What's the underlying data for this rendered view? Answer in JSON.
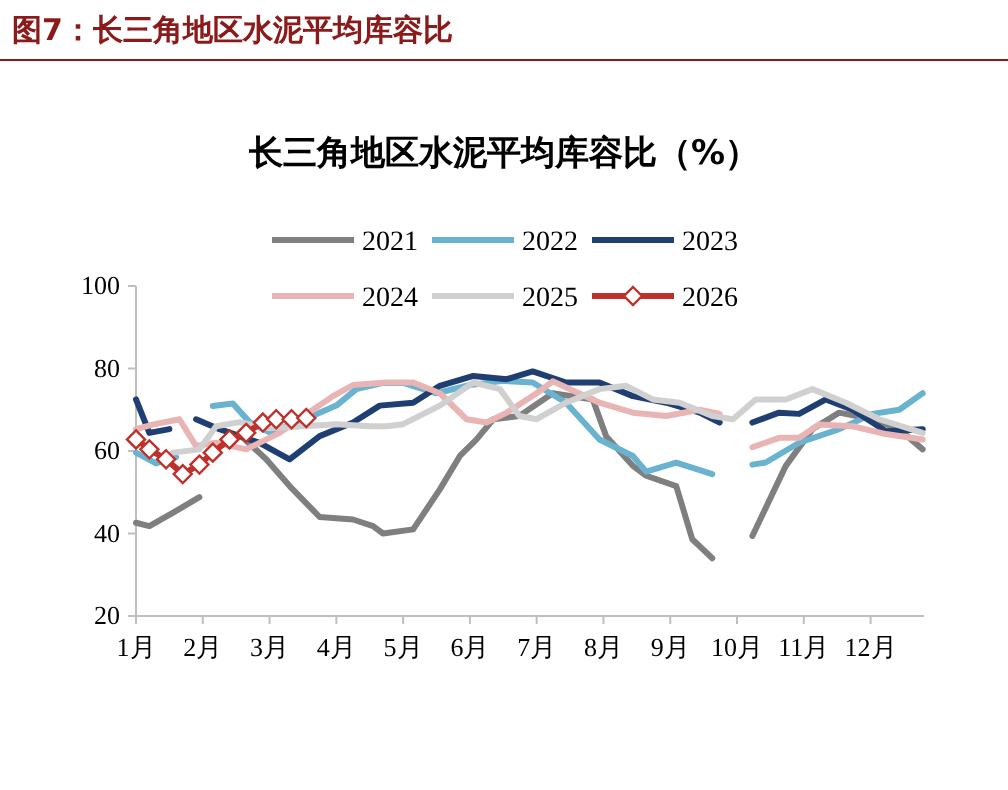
{
  "chart_data": {
    "type": "line",
    "title": "长三角地区水泥平均库容比（%）",
    "annotations": [
      "图7：长三角地区水泥平均库容比"
    ],
    "xlim": [
      1,
      12.8
    ],
    "xticks": [
      {
        "value": 1,
        "label": "1月"
      },
      {
        "value": 2,
        "label": "2月"
      },
      {
        "value": 3,
        "label": "3月"
      },
      {
        "value": 4,
        "label": "4月"
      },
      {
        "value": 5,
        "label": "5月"
      },
      {
        "value": 6,
        "label": "6月"
      },
      {
        "value": 7,
        "label": "7月"
      },
      {
        "value": 8,
        "label": "8月"
      },
      {
        "value": 9,
        "label": "9月"
      },
      {
        "value": 10,
        "label": "10月"
      },
      {
        "value": 11,
        "label": "11月"
      },
      {
        "value": 12,
        "label": "12月"
      }
    ],
    "ylim": [
      20,
      100
    ],
    "yticks": [
      20,
      40,
      60,
      80,
      100
    ],
    "legend": "top",
    "series": [
      {
        "name": "2021",
        "color": "#7f7f7f",
        "x": [
          1.0,
          1.2,
          1.55,
          1.95,
          null,
          2.55,
          2.95,
          3.3,
          3.75,
          4.25,
          4.55,
          4.7,
          5.15,
          5.55,
          5.85,
          6.1,
          6.35,
          6.74,
          7.24,
          7.84,
          8.04,
          8.44,
          8.64,
          9.09,
          9.33,
          9.63,
          null,
          10.23,
          10.73,
          11.13,
          11.53,
          12.03,
          12.43,
          12.78
        ],
        "values": [
          42.6,
          41.8,
          45,
          48.8,
          null,
          64,
          58,
          51.5,
          44,
          43.4,
          41.8,
          40,
          41,
          50.7,
          58.8,
          62.8,
          67.7,
          68.5,
          74,
          72.5,
          63.6,
          56.4,
          54,
          51.5,
          38.6,
          34,
          null,
          39.4,
          56.4,
          65.3,
          69.3,
          67.7,
          65.3,
          60.4
        ]
      },
      {
        "name": "2022",
        "color": "#6ab3d0",
        "x": [
          1.0,
          1.3,
          1.6,
          null,
          2.15,
          2.45,
          2.7,
          3.0,
          3.5,
          4.0,
          4.3,
          4.7,
          5.0,
          5.5,
          6.0,
          6.5,
          6.94,
          7.44,
          7.94,
          8.44,
          8.64,
          9.09,
          9.63,
          null,
          10.23,
          10.43,
          10.93,
          11.53,
          12.03,
          12.43,
          12.78
        ],
        "values": [
          59.6,
          57,
          58.5,
          null,
          70.9,
          71.5,
          67,
          64.5,
          67.5,
          71,
          75,
          76.5,
          76.5,
          74,
          76,
          77,
          76.6,
          71.7,
          62.8,
          58.8,
          55,
          57.2,
          54.4,
          null,
          56.7,
          57.2,
          62,
          65.3,
          69,
          70,
          74
        ]
      },
      {
        "name": "2023",
        "color": "#1f3f73",
        "x": [
          1.0,
          1.2,
          1.5,
          null,
          1.9,
          2.25,
          2.85,
          3.3,
          3.75,
          4.25,
          4.65,
          5.15,
          5.55,
          6.05,
          6.55,
          6.94,
          7.44,
          7.94,
          8.44,
          8.94,
          9.44,
          9.74,
          null,
          10.23,
          10.63,
          10.93,
          11.33,
          11.73,
          12.23,
          12.78
        ],
        "values": [
          72.5,
          64.4,
          65.3,
          null,
          67.7,
          65.3,
          62,
          58,
          63.6,
          66.9,
          71,
          71.7,
          75.8,
          78.2,
          77.4,
          79.3,
          76.6,
          76.6,
          73.3,
          71.7,
          69.3,
          66.9,
          null,
          66.9,
          69.3,
          69,
          72.5,
          70,
          64.8,
          65.3
        ]
      },
      {
        "name": "2024",
        "color": "#e8b4b4",
        "x": [
          1.0,
          1.25,
          1.65,
          1.9,
          2.2,
          2.65,
          3.15,
          3.65,
          3.95,
          4.25,
          4.75,
          5.15,
          5.55,
          5.95,
          6.25,
          6.55,
          7.0,
          7.24,
          7.94,
          8.44,
          8.94,
          9.44,
          9.74,
          null,
          10.23,
          10.63,
          10.93,
          11.23,
          11.73,
          12.23,
          12.78
        ],
        "values": [
          65.3,
          66.4,
          67.7,
          61.2,
          62,
          60.4,
          64.4,
          70,
          73.3,
          76,
          76.6,
          76.6,
          74,
          67.7,
          66.9,
          69.3,
          74,
          76.9,
          71.7,
          69.3,
          68.5,
          70,
          69,
          null,
          60.9,
          63.2,
          63.2,
          66.4,
          66,
          64.1,
          62.8
        ]
      },
      {
        "name": "2025",
        "color": "#d0d0d0",
        "x": [
          1.55,
          1.95,
          2.2,
          2.55,
          3.0,
          3.5,
          4.0,
          4.5,
          4.75,
          5.0,
          5.55,
          6.05,
          6.45,
          6.74,
          7.0,
          7.44,
          7.94,
          8.34,
          8.74,
          9.14,
          9.63,
          9.94,
          10.28,
          10.73,
          11.13,
          11.63,
          12.13,
          12.78
        ],
        "values": [
          59.6,
          60.4,
          66,
          67,
          65.5,
          66,
          66.5,
          66,
          66,
          66.5,
          71,
          76.6,
          75,
          68.5,
          67.7,
          71.7,
          75,
          75.8,
          72.5,
          71.7,
          68.5,
          67.7,
          72.5,
          72.5,
          75,
          71.7,
          67.7,
          64.4
        ]
      },
      {
        "name": "2026",
        "color": "#c0302a",
        "marker": "diamond",
        "x": [
          1.0,
          1.2,
          1.45,
          1.7,
          1.95,
          2.15,
          2.4,
          2.65,
          2.9,
          3.1,
          3.33,
          3.55
        ],
        "values": [
          62.8,
          60.4,
          58,
          54.4,
          56.7,
          59.6,
          62.8,
          64.4,
          66.9,
          67.7,
          67.7,
          68
        ]
      }
    ]
  }
}
